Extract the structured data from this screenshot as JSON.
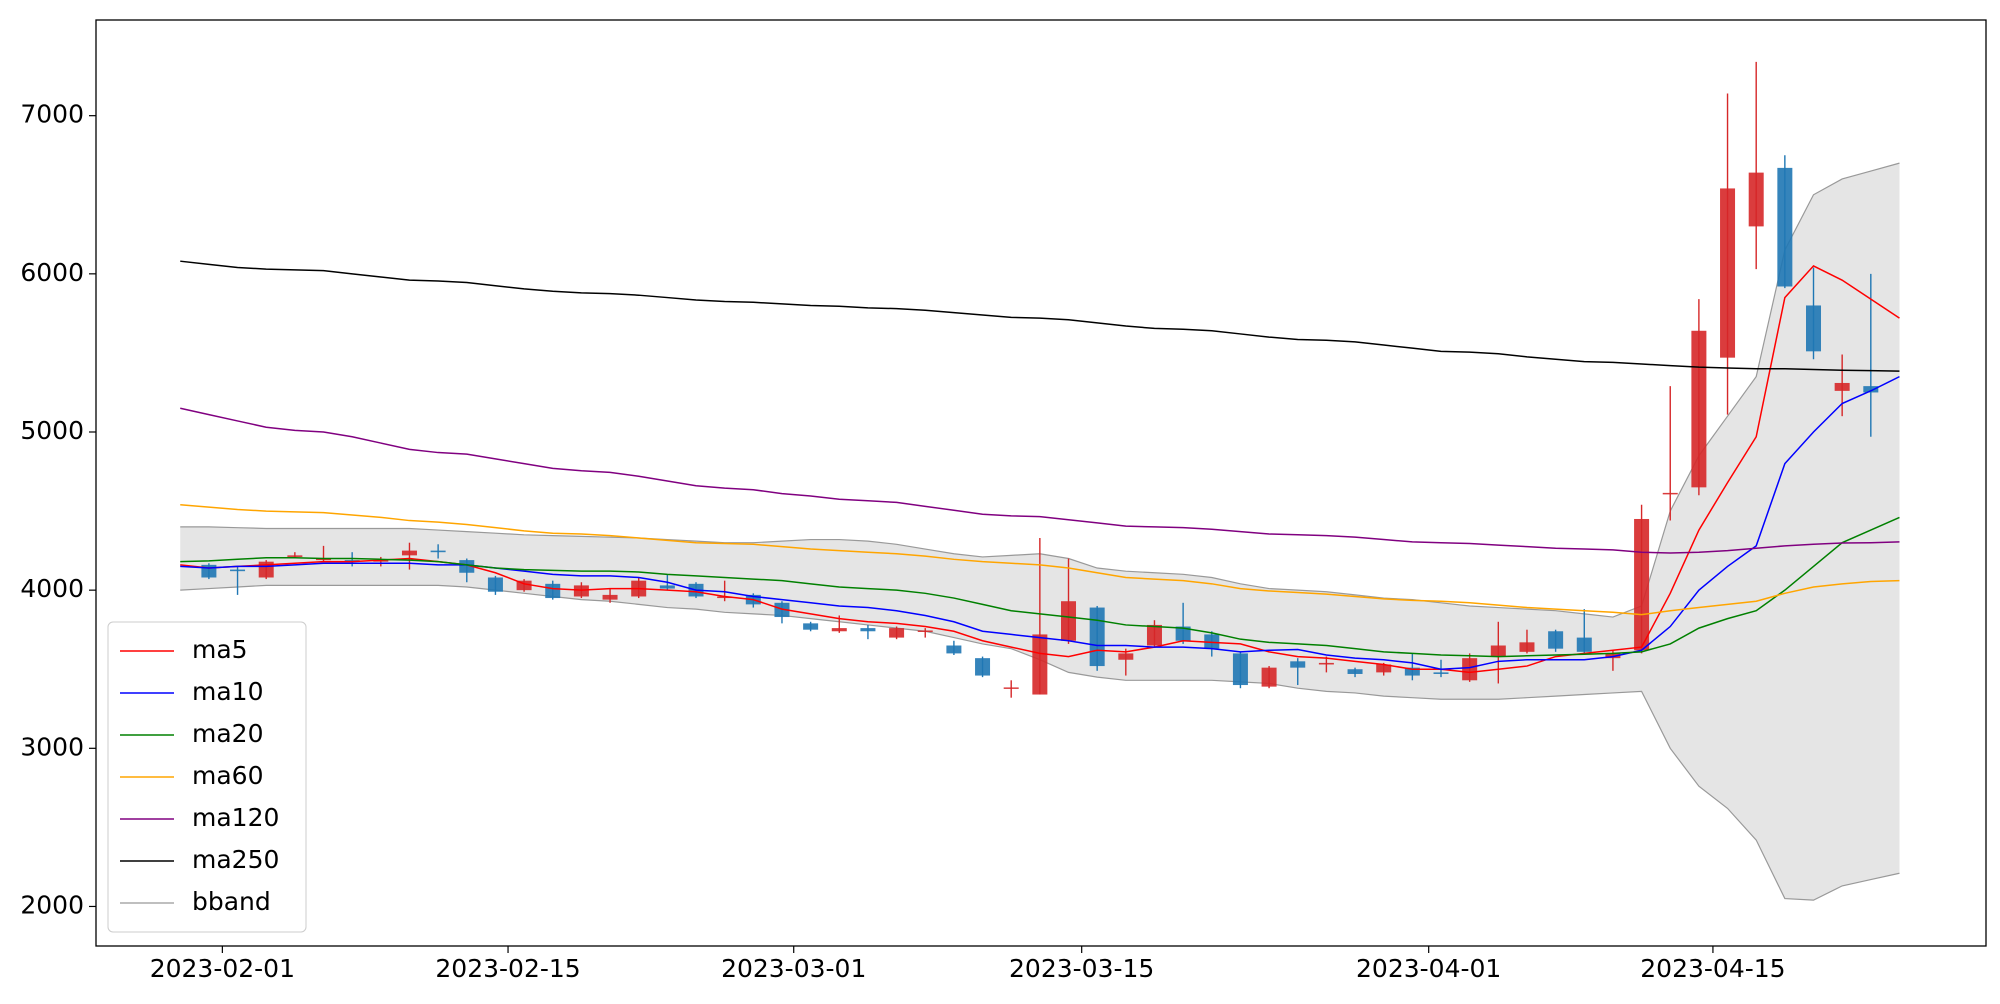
{
  "chart_data": {
    "type": "candlestick",
    "ylim": [
      1750,
      7605
    ],
    "yticks": [
      2000,
      3000,
      4000,
      5000,
      6000,
      7000
    ],
    "xlim": [
      -2.94,
      63.02
    ],
    "xticks": [
      {
        "value": 1.47,
        "label": "2023-02-01"
      },
      {
        "value": 11.44,
        "label": "2023-02-15"
      },
      {
        "value": 21.41,
        "label": "2023-03-01"
      },
      {
        "value": 31.46,
        "label": "2023-03-15"
      },
      {
        "value": 43.57,
        "label": "2023-04-01"
      },
      {
        "value": 53.49,
        "label": "2023-04-15"
      }
    ],
    "up_color": "#d62728",
    "down_color": "#1f77b4",
    "legend": "lower left",
    "grid": false,
    "open": [
      null,
      4160,
      4130,
      4080,
      4210,
      4190,
      4190,
      4180,
      4220,
      4250,
      4190,
      4080,
      4000,
      4040,
      3960,
      3940,
      3960,
      4030,
      4040,
      3950,
      3970,
      3920,
      3790,
      3740,
      3760,
      3700,
      3740,
      3650,
      3570,
      3380,
      3340,
      3680,
      3890,
      3560,
      3650,
      3770,
      3720,
      3600,
      3390,
      3550,
      3530,
      3500,
      3480,
      3510,
      3480,
      3430,
      3580,
      3610,
      3740,
      3700,
      3570,
      3620,
      4610,
      4650,
      5470,
      6300,
      6670,
      5800,
      5260,
      5290,
      null
    ],
    "close": [
      null,
      4080,
      4120,
      4180,
      4220,
      4200,
      4180,
      4190,
      4250,
      4240,
      4110,
      3990,
      4060,
      3950,
      4030,
      3970,
      4060,
      4010,
      3960,
      3960,
      3910,
      3830,
      3750,
      3760,
      3740,
      3760,
      3745,
      3600,
      3460,
      3385,
      3720,
      3930,
      3520,
      3600,
      3780,
      3680,
      3630,
      3400,
      3510,
      3510,
      3540,
      3470,
      3530,
      3460,
      3470,
      3570,
      3650,
      3670,
      3630,
      3610,
      3600,
      4450,
      4615,
      5640,
      6540,
      6640,
      5920,
      5510,
      5310,
      5250,
      null
    ],
    "high": [
      null,
      4170,
      4150,
      4190,
      4240,
      4280,
      4240,
      4210,
      4300,
      4290,
      4200,
      4090,
      4070,
      4060,
      4050,
      4010,
      4080,
      4100,
      4050,
      4060,
      3980,
      3930,
      3800,
      3840,
      3780,
      3770,
      3760,
      3680,
      3580,
      3430,
      4330,
      4200,
      3900,
      3630,
      3810,
      3920,
      3740,
      3610,
      3520,
      3570,
      3580,
      3510,
      3540,
      3600,
      3560,
      3600,
      3800,
      3750,
      3750,
      3880,
      3620,
      4540,
      5290,
      5840,
      7140,
      7340,
      6750,
      6040,
      5490,
      6000,
      null
    ],
    "low": [
      null,
      4070,
      3970,
      4070,
      4200,
      4180,
      4150,
      4150,
      4130,
      4200,
      4050,
      3970,
      3990,
      3940,
      3950,
      3920,
      3950,
      4000,
      3950,
      3930,
      3890,
      3790,
      3740,
      3730,
      3690,
      3690,
      3700,
      3590,
      3450,
      3320,
      3340,
      3660,
      3490,
      3460,
      3640,
      3660,
      3580,
      3380,
      3380,
      3400,
      3480,
      3450,
      3460,
      3430,
      3450,
      3420,
      3410,
      3600,
      3610,
      3590,
      3490,
      3600,
      4440,
      4600,
      5110,
      6030,
      5910,
      5460,
      5100,
      4970,
      null
    ],
    "series": [
      {
        "name": "ma5",
        "color": "#ff0000",
        "values": [
          4160,
          4140,
          4150,
          4160,
          4170,
          4180,
          4180,
          4190,
          4200,
          4180,
          4160,
          4110,
          4040,
          4010,
          4000,
          4010,
          4010,
          4000,
          3990,
          3960,
          3940,
          3880,
          3850,
          3820,
          3800,
          3790,
          3770,
          3740,
          3680,
          3640,
          3600,
          3580,
          3620,
          3610,
          3640,
          3680,
          3670,
          3660,
          3610,
          3580,
          3570,
          3550,
          3530,
          3500,
          3500,
          3480,
          3500,
          3520,
          3580,
          3600,
          3620,
          3640,
          3980,
          4380,
          4680,
          4970,
          5850,
          6050,
          5960,
          5840,
          5720
        ]
      },
      {
        "name": "ma10",
        "color": "#0000ff",
        "values": [
          4150,
          4140,
          4150,
          4150,
          4160,
          4170,
          4170,
          4170,
          4170,
          4160,
          4160,
          4140,
          4120,
          4100,
          4090,
          4090,
          4080,
          4050,
          4000,
          3990,
          3960,
          3940,
          3920,
          3900,
          3890,
          3870,
          3840,
          3800,
          3740,
          3720,
          3700,
          3680,
          3650,
          3650,
          3640,
          3640,
          3630,
          3610,
          3620,
          3625,
          3590,
          3570,
          3560,
          3540,
          3500,
          3510,
          3550,
          3560,
          3560,
          3560,
          3580,
          3620,
          3770,
          4000,
          4150,
          4280,
          4800,
          5000,
          5180,
          5260,
          5350
        ]
      },
      {
        "name": "ma20",
        "color": "#008000",
        "values": [
          4180,
          4185,
          4195,
          4205,
          4205,
          4200,
          4200,
          4195,
          4190,
          4180,
          4160,
          4140,
          4130,
          4125,
          4120,
          4120,
          4115,
          4100,
          4090,
          4080,
          4070,
          4060,
          4040,
          4020,
          4010,
          4000,
          3980,
          3950,
          3910,
          3870,
          3850,
          3830,
          3810,
          3780,
          3770,
          3760,
          3730,
          3690,
          3670,
          3660,
          3650,
          3630,
          3610,
          3600,
          3590,
          3585,
          3580,
          3585,
          3590,
          3595,
          3600,
          3610,
          3660,
          3760,
          3820,
          3870,
          4000,
          4150,
          4300,
          4380,
          4460
        ]
      },
      {
        "name": "ma60",
        "color": "#ffa500",
        "values": [
          4540,
          4525,
          4510,
          4500,
          4495,
          4490,
          4475,
          4460,
          4440,
          4430,
          4415,
          4395,
          4375,
          4360,
          4355,
          4345,
          4330,
          4315,
          4300,
          4295,
          4290,
          4275,
          4260,
          4250,
          4240,
          4230,
          4215,
          4195,
          4180,
          4170,
          4160,
          4140,
          4110,
          4080,
          4070,
          4060,
          4040,
          4010,
          3995,
          3985,
          3975,
          3960,
          3945,
          3935,
          3930,
          3920,
          3905,
          3890,
          3880,
          3870,
          3860,
          3845,
          3870,
          3890,
          3910,
          3930,
          3980,
          4020,
          4040,
          4055,
          4060
        ]
      },
      {
        "name": "ma120",
        "color": "#800080",
        "values": [
          5150,
          5110,
          5070,
          5030,
          5010,
          5000,
          4970,
          4930,
          4890,
          4870,
          4860,
          4830,
          4800,
          4770,
          4755,
          4745,
          4720,
          4690,
          4660,
          4645,
          4635,
          4610,
          4595,
          4575,
          4565,
          4555,
          4530,
          4505,
          4480,
          4470,
          4465,
          4445,
          4425,
          4405,
          4400,
          4395,
          4385,
          4370,
          4355,
          4350,
          4345,
          4335,
          4320,
          4305,
          4300,
          4295,
          4285,
          4275,
          4265,
          4260,
          4255,
          4240,
          4235,
          4240,
          4250,
          4265,
          4280,
          4290,
          4298,
          4300,
          4305
        ]
      },
      {
        "name": "ma250",
        "color": "#000000",
        "values": [
          6080,
          6060,
          6040,
          6030,
          6025,
          6020,
          6000,
          5980,
          5960,
          5955,
          5945,
          5925,
          5905,
          5890,
          5880,
          5875,
          5865,
          5850,
          5835,
          5825,
          5820,
          5810,
          5800,
          5795,
          5785,
          5780,
          5770,
          5755,
          5740,
          5725,
          5720,
          5710,
          5690,
          5670,
          5655,
          5650,
          5640,
          5620,
          5600,
          5585,
          5580,
          5570,
          5550,
          5530,
          5510,
          5505,
          5495,
          5475,
          5460,
          5445,
          5440,
          5430,
          5420,
          5410,
          5405,
          5400,
          5400,
          5395,
          5390,
          5388,
          5385
        ]
      }
    ],
    "band": {
      "name": "bband",
      "color": "#999999",
      "fill": "#e5e5e5",
      "upper": [
        4400,
        4400,
        4395,
        4390,
        4390,
        4390,
        4390,
        4390,
        4390,
        4380,
        4370,
        4360,
        4350,
        4345,
        4340,
        4335,
        4330,
        4320,
        4310,
        4300,
        4300,
        4310,
        4320,
        4320,
        4310,
        4290,
        4260,
        4230,
        4210,
        4220,
        4230,
        4200,
        4140,
        4120,
        4110,
        4100,
        4080,
        4040,
        4010,
        4000,
        3990,
        3970,
        3950,
        3940,
        3920,
        3900,
        3890,
        3880,
        3870,
        3850,
        3830,
        3900,
        4500,
        4850,
        5100,
        5350,
        6150,
        6500,
        6600,
        6650,
        6700
      ],
      "lower": [
        4000,
        4010,
        4020,
        4030,
        4030,
        4030,
        4030,
        4030,
        4030,
        4030,
        4020,
        4000,
        3980,
        3960,
        3940,
        3930,
        3910,
        3890,
        3880,
        3860,
        3850,
        3840,
        3820,
        3800,
        3780,
        3760,
        3740,
        3700,
        3660,
        3630,
        3560,
        3480,
        3450,
        3430,
        3430,
        3430,
        3430,
        3420,
        3410,
        3380,
        3360,
        3350,
        3330,
        3320,
        3310,
        3310,
        3310,
        3320,
        3330,
        3340,
        3350,
        3360,
        3000,
        2760,
        2620,
        2420,
        2050,
        2040,
        2130,
        2170,
        2210
      ]
    }
  }
}
